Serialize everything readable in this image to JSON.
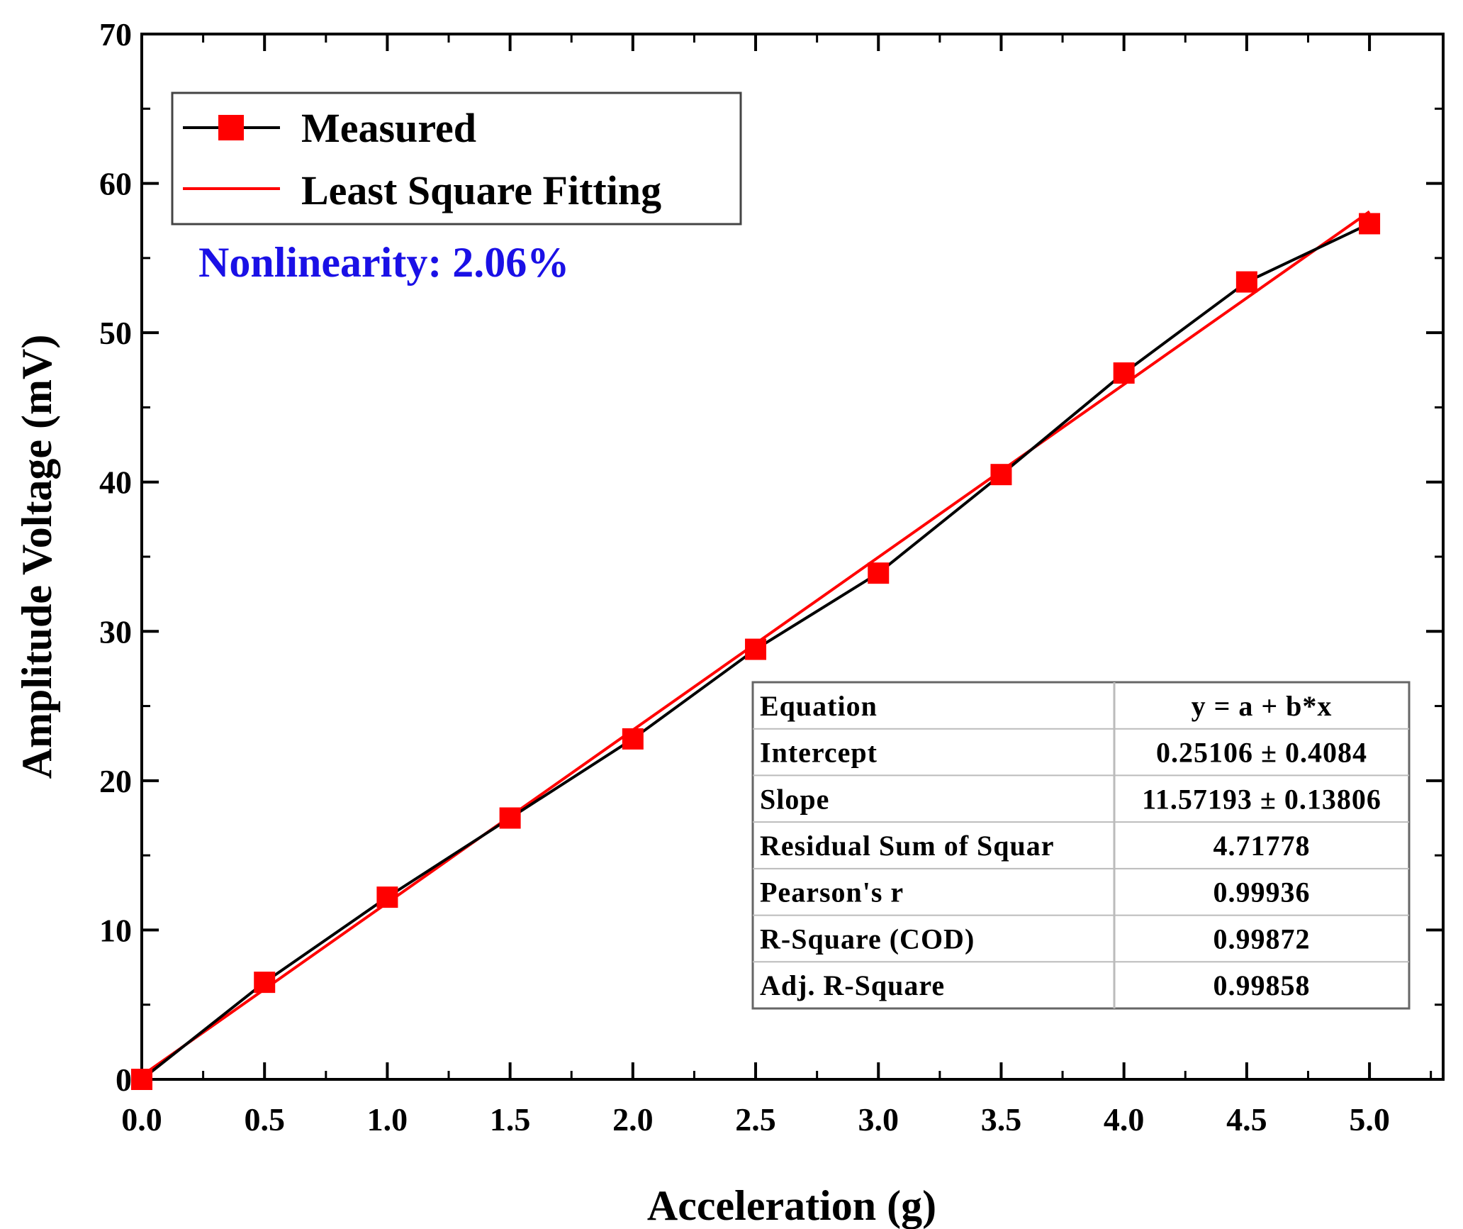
{
  "chart_data": {
    "type": "line",
    "xlabel": "Acceleration (g)",
    "ylabel": "Amplitude Voltage (mV)",
    "xlim": [
      0,
      5.3
    ],
    "ylim": [
      0,
      70
    ],
    "x_ticks": [
      "0.0",
      "0.5",
      "1.0",
      "1.5",
      "2.0",
      "2.5",
      "3.0",
      "3.5",
      "4.0",
      "4.5",
      "5.0"
    ],
    "y_ticks": [
      "0",
      "10",
      "20",
      "30",
      "40",
      "50",
      "60",
      "70"
    ],
    "x": [
      0,
      0.5,
      1.0,
      1.5,
      2.0,
      2.5,
      3.0,
      3.5,
      4.0,
      4.5,
      5.0
    ],
    "series": [
      {
        "name": "Measured",
        "values": [
          0,
          6.5,
          12.2,
          17.5,
          22.8,
          28.8,
          33.9,
          40.5,
          47.3,
          53.4,
          57.3
        ],
        "line_color": "#000000",
        "marker_color": "#ff0000",
        "marker": "square"
      },
      {
        "name": "Least Square Fitting",
        "fit": {
          "intercept": 0.25106,
          "slope": 11.57193
        },
        "line_color": "#ff0000"
      }
    ],
    "annotation": {
      "text": "Nonlinearity: 2.06%",
      "color": "#1a10e6"
    },
    "stats_table": {
      "rows": [
        [
          "Equation",
          "y = a + b*x"
        ],
        [
          "Intercept",
          "0.25106 ± 0.4084"
        ],
        [
          "Slope",
          "11.57193 ± 0.13806"
        ],
        [
          "Residual Sum of Squar",
          "4.71778"
        ],
        [
          "Pearson's r",
          "0.99936"
        ],
        [
          "R-Square (COD)",
          "0.99872"
        ],
        [
          "Adj. R-Square",
          "0.99858"
        ]
      ]
    },
    "legend_position": "top-left"
  }
}
